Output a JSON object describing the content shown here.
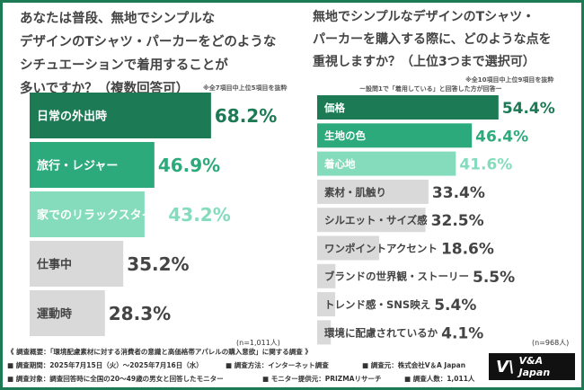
{
  "colors": {
    "frame": "#1c7a55",
    "dark": "#1c7a55",
    "mid": "#2daa7c",
    "light": "#84dcbd",
    "grey": "#d9d9d9"
  },
  "left": {
    "question": "あなたは普段、無地でシンプルな\nデザインのTシャツ・パーカーをどのような\nシチュエーションで着用することが\n多いですか？（複数回答可）",
    "note": "※全7項目中上位5項目を抜粋",
    "n": "(n=1,011人)"
  },
  "right": {
    "question": "無地でシンプルなデザインのTシャツ・\nパーカーを購入する際に、どのような点を\n重視しますか？（上位3つまで選択可）",
    "note": "※全10項目中上位9項目を抜粋",
    "subnote": "ー設問1で「着用している」と回答した方が回答ー",
    "n": "(n=968人)"
  },
  "chart_data": [
    {
      "type": "bar",
      "orientation": "horizontal",
      "unit": "%",
      "categories": [
        "日常の外出時",
        "旅行・レジャー",
        "家でのリラックスタイム",
        "仕事中",
        "運動時"
      ],
      "values": [
        68.2,
        46.9,
        43.2,
        35.2,
        28.3
      ],
      "labels": [
        "68.2%",
        "46.9%",
        "43.2%",
        "35.2%",
        "28.3%"
      ]
    },
    {
      "type": "bar",
      "orientation": "horizontal",
      "unit": "%",
      "categories": [
        "価格",
        "生地の色",
        "着心地",
        "素材・肌触り",
        "シルエット・サイズ感",
        "ワンポイントアクセント",
        "ブランドの世界観・ストーリー",
        "トレンド感・SNS映え",
        "環境に配慮されているか"
      ],
      "values": [
        54.4,
        46.4,
        41.6,
        33.4,
        32.5,
        18.6,
        5.5,
        5.4,
        4.1
      ],
      "labels": [
        "54.4%",
        "46.4%",
        "41.6%",
        "33.4%",
        "32.5%",
        "18.6%",
        "5.5%",
        "5.4%",
        "4.1%"
      ]
    }
  ],
  "footer": {
    "overview": "《 調査概要：「環境配慮素材に対する消費者の意識と高価格帯アパレルの購入意欲」に関する調査 》",
    "period": "■ 調査期間：2025年7月15日（火）〜2025年7月16日（水）",
    "method": "■ 調査方法：インターネット調査",
    "by": "■ 調査元：株式会社V＆A Japan",
    "target": "■ 調査対象：調査回答時に全国の20〜49歳の男女と回答したモニター",
    "provider": "■ モニター提供元：PRIZMAリサーチ",
    "count": "■ 調査人数：1,011人",
    "logo": "V&A Japan"
  }
}
